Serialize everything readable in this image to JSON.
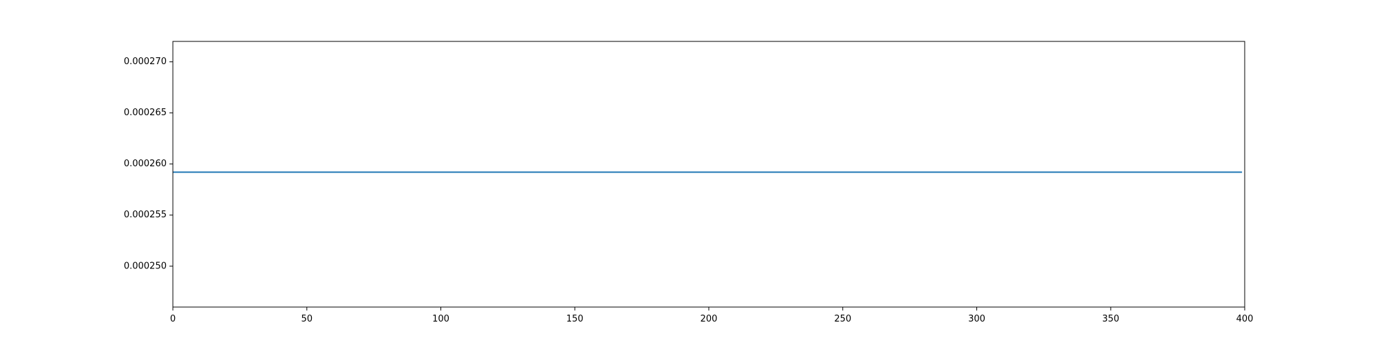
{
  "chart_data": {
    "type": "line",
    "title": "",
    "xlabel": "",
    "ylabel": "",
    "xlim": [
      0,
      400
    ],
    "ylim": [
      0.000246,
      0.000272
    ],
    "x_ticks": [
      0,
      50,
      100,
      150,
      200,
      250,
      300,
      350,
      400
    ],
    "x_tick_labels": [
      "0",
      "50",
      "100",
      "150",
      "200",
      "250",
      "300",
      "350",
      "400"
    ],
    "y_ticks": [
      0.00025,
      0.000255,
      0.00026,
      0.000265,
      0.00027
    ],
    "y_tick_labels": [
      "0.000250",
      "0.000255",
      "0.000260",
      "0.000265",
      "0.000270"
    ],
    "grid": false,
    "legend": "none",
    "series": [
      {
        "color": "#1f77b4",
        "x": [
          0,
          399
        ],
        "y": [
          0.0002592,
          0.0002592
        ]
      }
    ]
  }
}
